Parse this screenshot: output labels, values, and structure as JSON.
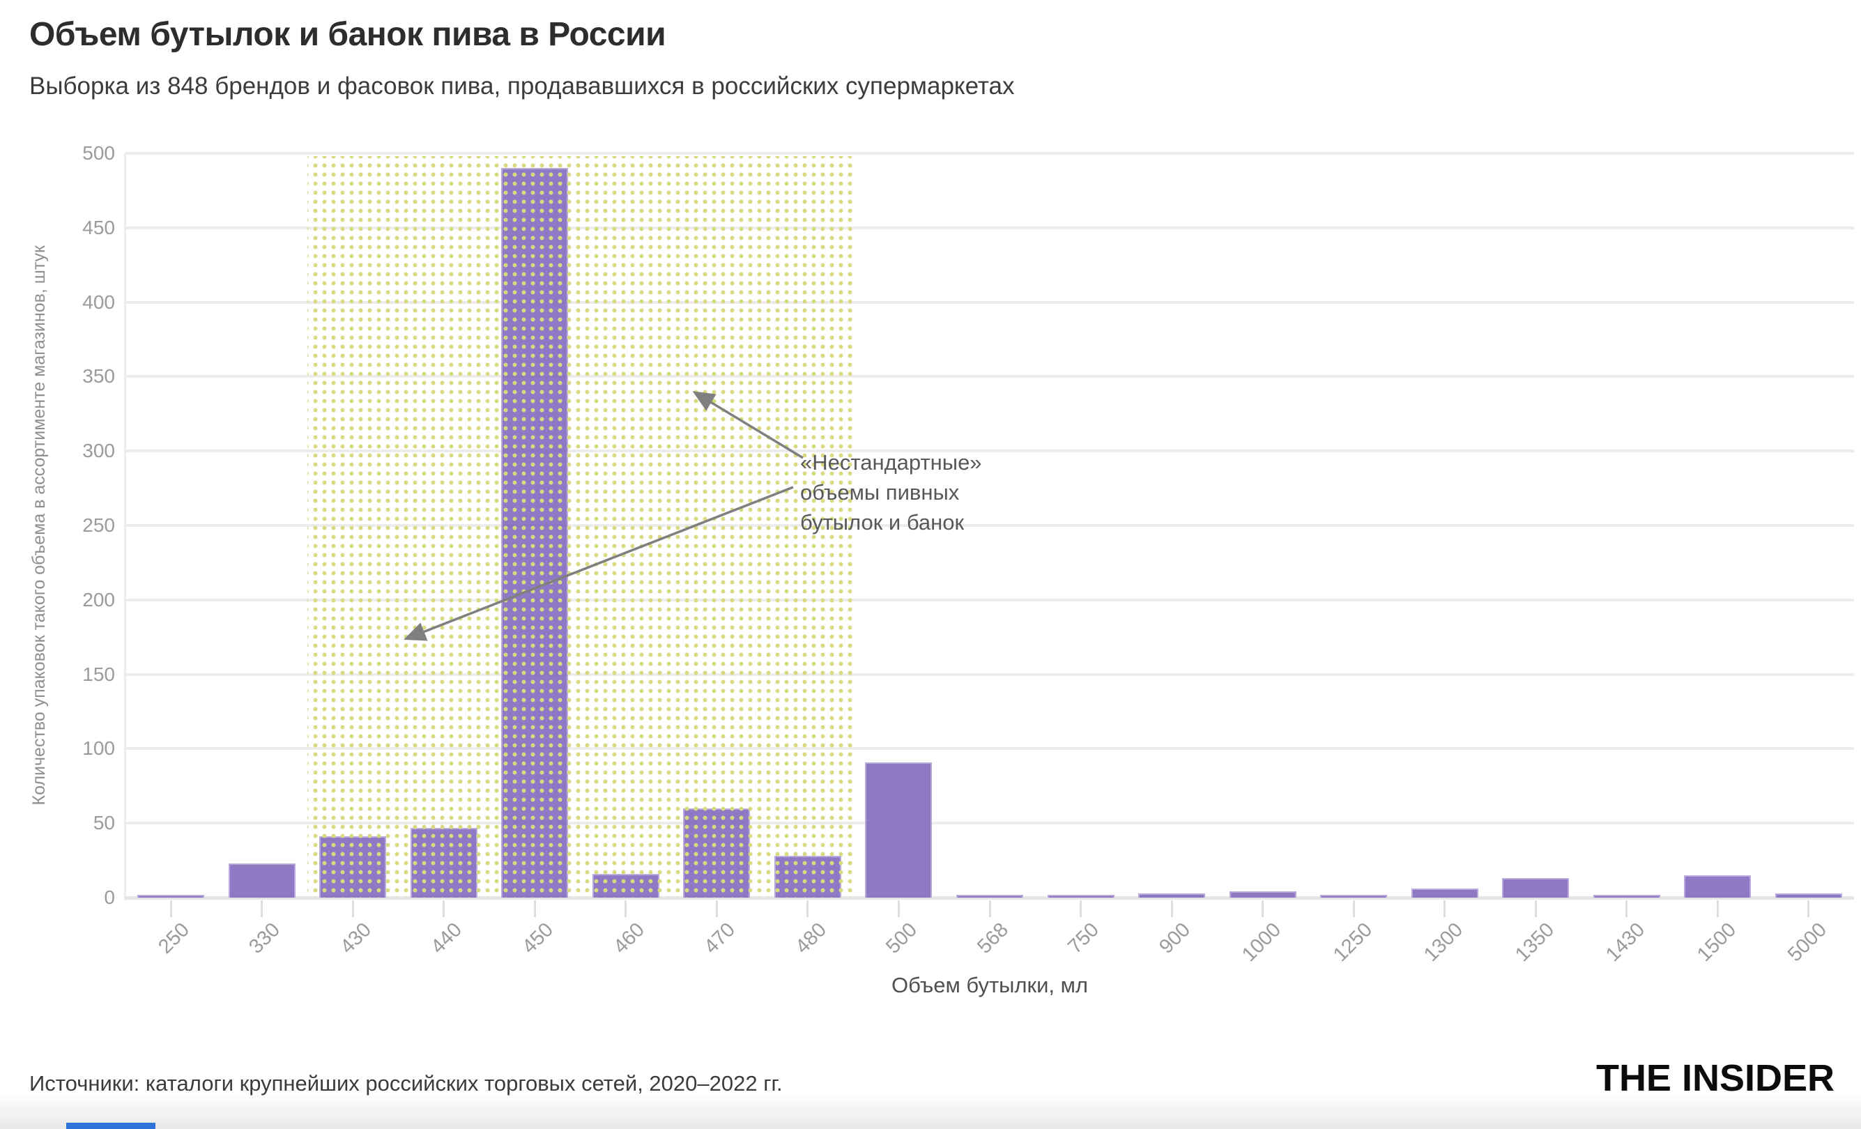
{
  "header": {
    "title": "Объем бутылок и банок пива в России",
    "subtitle": "Выборка из 848 брендов и фасовок пива, продававшихся в российских супермаркетах"
  },
  "chart_data": {
    "type": "bar",
    "title": "Объем бутылок и банок пива в России",
    "subtitle": "Выборка из 848 брендов и фасовок пива, продававшихся в российских супермаркетах",
    "categories": [
      "250",
      "330",
      "430",
      "440",
      "450",
      "460",
      "470",
      "480",
      "500",
      "568",
      "750",
      "900",
      "1000",
      "1250",
      "1300",
      "1350",
      "1430",
      "1500",
      "5000"
    ],
    "values": [
      2,
      23,
      41,
      47,
      490,
      16,
      60,
      28,
      91,
      2,
      2,
      3,
      4,
      1,
      6,
      13,
      1,
      15,
      3
    ],
    "xlabel": "Объем бутылки, мл",
    "ylabel": "Количество упаковок такого объема в ассортименте магазинов, штук",
    "ylim": [
      0,
      500
    ],
    "ytick_step": 50,
    "grid": true,
    "legend": "none",
    "bar_color": "#8e7ac4",
    "highlight_region": {
      "from_category": "430",
      "to_category": "480",
      "dot_color": "#d9da80",
      "annotation_lines": [
        "«Нестандартные»",
        "объемы пивных",
        "бутылок и банок"
      ]
    }
  },
  "footer": {
    "source": "Источники: каталоги крупнейших российских торговых сетей, 2020–2022 гг.",
    "brand": "THE INSIDER"
  }
}
